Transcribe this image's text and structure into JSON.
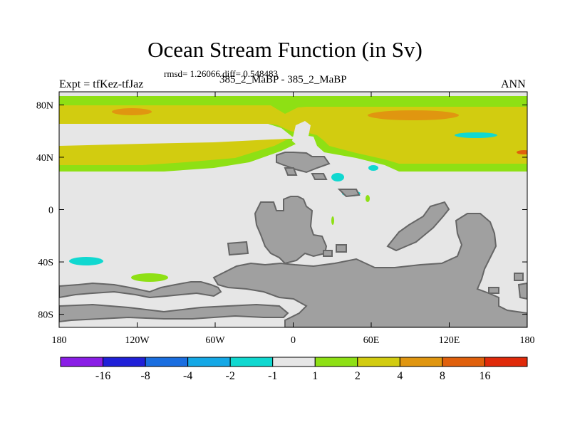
{
  "chart_data": {
    "type": "heatmap",
    "title": "Ocean Stream Function (in Sv)",
    "stats_line": "rmsd= 1.26066 diff= 0.548483",
    "subtitle": "385_2_MaBP - 385_2_MaBP",
    "left_label": "Expt = tfKez-tfJaz",
    "right_label": "ANN",
    "x_axis": {
      "range": [
        -180,
        180
      ],
      "ticks": [
        -180,
        -120,
        -60,
        0,
        60,
        120,
        180
      ],
      "tick_labels": [
        "180",
        "120W",
        "60W",
        "0",
        "60E",
        "120E",
        "180"
      ]
    },
    "y_axis": {
      "range": [
        -90,
        90
      ],
      "ticks": [
        80,
        40,
        0,
        -40,
        -80
      ],
      "tick_labels": [
        "80N",
        "40N",
        "0",
        "40S",
        "80S"
      ]
    },
    "colorbar": {
      "labels": [
        "-16",
        "-8",
        "-4",
        "-2",
        "-1",
        "1",
        "2",
        "4",
        "8",
        "16"
      ],
      "colors": [
        "#8a1ee6",
        "#2020d8",
        "#1a6ee0",
        "#14a8e6",
        "#10d8d0",
        "#e6e6e6",
        "#8ee014",
        "#d2cc10",
        "#e09610",
        "#e0600c",
        "#e02a0a"
      ]
    },
    "land_color": "#a0a0a0",
    "contour_color": "#666666"
  }
}
